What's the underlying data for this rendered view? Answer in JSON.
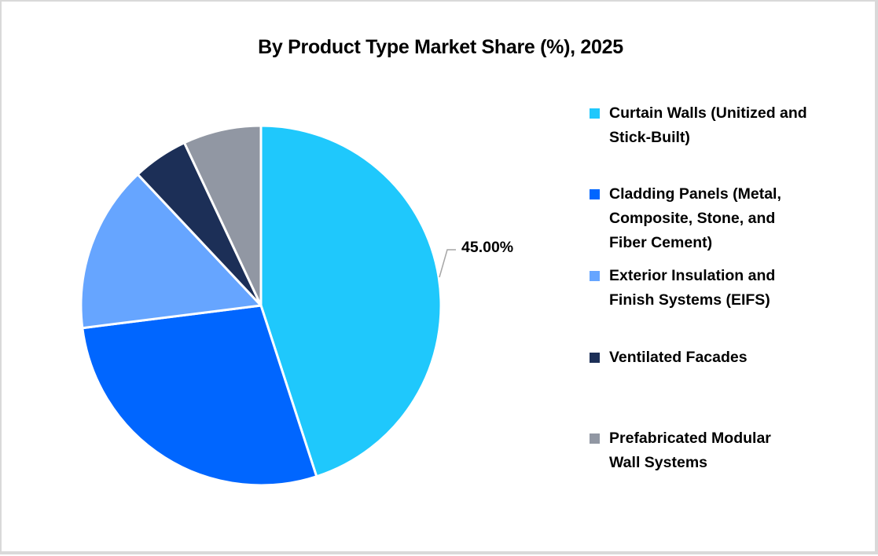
{
  "chart_data": {
    "type": "pie",
    "title": "By Product Type Market Share (%), 2025",
    "categories": [
      "Curtain Walls (Unitized and Stick-Built)",
      "Cladding Panels (Metal, Composite, Stone, and Fiber Cement)",
      "Exterior Insulation and Finish Systems (EIFS)",
      "Ventilated Facades",
      "Prefabricated Modular Wall Systems"
    ],
    "values": [
      45,
      28,
      15,
      5,
      7
    ],
    "colors": [
      "#1FC8FC",
      "#0066FF",
      "#66A5FF",
      "#1C2F57",
      "#9197A3"
    ],
    "annotations": [
      {
        "category": "Curtain Walls (Unitized and Stick-Built)",
        "text": "45.00%"
      }
    ],
    "legend_position": "right",
    "start_angle_deg": 0,
    "direction": "clockwise"
  },
  "title": "By Product Type Market Share (%), 2025",
  "data_label": "45.00%",
  "legend": [
    {
      "lines": [
        "Curtain Walls (Unitized and",
        "Stick-Built)"
      ],
      "color": "#1FC8FC"
    },
    {
      "lines": [
        "Cladding Panels (Metal,",
        "Composite, Stone, and",
        "Fiber Cement)"
      ],
      "color": "#0066FF"
    },
    {
      "lines": [
        "Exterior Insulation and",
        "Finish Systems (EIFS)"
      ],
      "color": "#66A5FF"
    },
    {
      "lines": [
        "Ventilated Facades"
      ],
      "color": "#1C2F57"
    },
    {
      "lines": [
        "Prefabricated Modular",
        "Wall Systems"
      ],
      "color": "#9197A3"
    }
  ]
}
